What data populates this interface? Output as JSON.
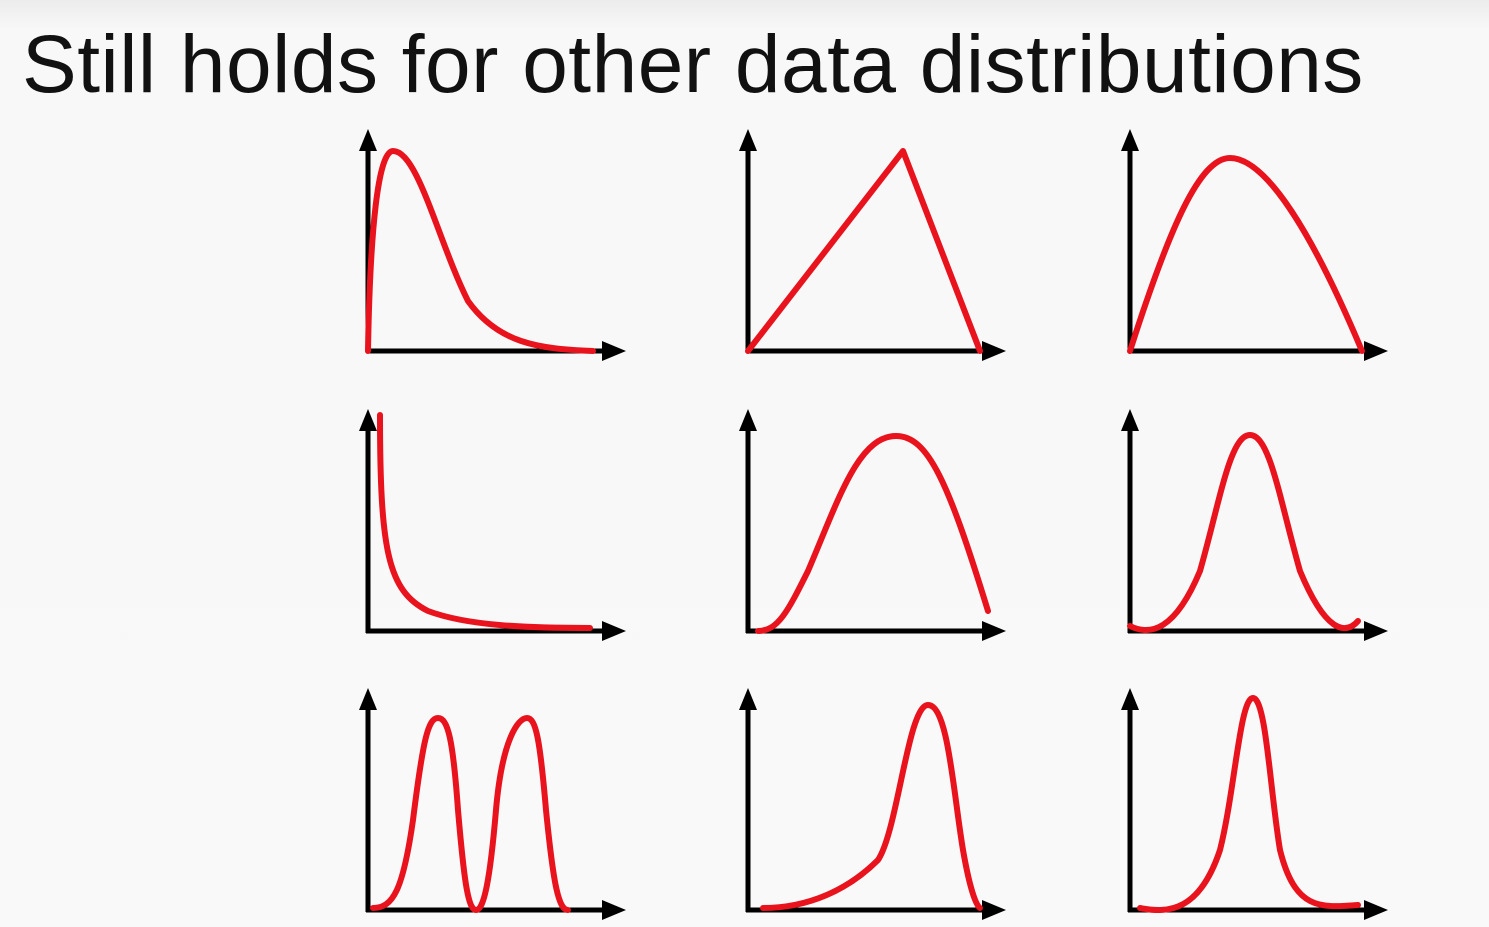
{
  "title": "Still holds for other data distributions"
}
